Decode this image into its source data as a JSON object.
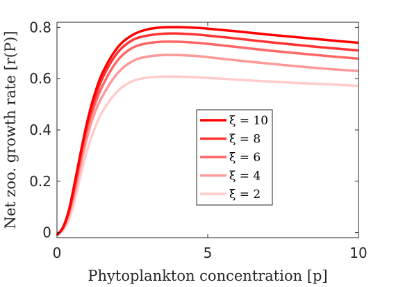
{
  "chart_data": {
    "type": "line",
    "xlabel": "Phytoplankton concentration [p]",
    "ylabel": "Net zoo. growth rate [r(P)]",
    "xlim": [
      0,
      10
    ],
    "ylim": [
      -0.02,
      0.82
    ],
    "xticks": [
      "0",
      "5",
      "10"
    ],
    "yticks": [
      "0",
      "0.2",
      "0.4",
      "0.6",
      "0.8"
    ],
    "grid": false,
    "legend_position": "center",
    "series": [
      {
        "name": "ξ = 10",
        "color": "#ff0000",
        "x": [
          0,
          0.2,
          0.4,
          0.6,
          0.8,
          1.0,
          1.2,
          1.5,
          2.0,
          2.5,
          3.0,
          3.5,
          4.0,
          4.5,
          5.0,
          6.0,
          7.0,
          8.0,
          9.0,
          10.0
        ],
        "y": [
          -0.01,
          0.02,
          0.09,
          0.2,
          0.32,
          0.43,
          0.52,
          0.62,
          0.72,
          0.77,
          0.792,
          0.8,
          0.801,
          0.799,
          0.795,
          0.784,
          0.772,
          0.761,
          0.75,
          0.74
        ]
      },
      {
        "name": "ξ = 8",
        "color": "#ff3333",
        "x": [
          0,
          0.2,
          0.4,
          0.6,
          0.8,
          1.0,
          1.2,
          1.5,
          2.0,
          2.5,
          3.0,
          3.5,
          4.0,
          4.5,
          5.0,
          6.0,
          7.0,
          8.0,
          9.0,
          10.0
        ],
        "y": [
          -0.01,
          0.02,
          0.085,
          0.19,
          0.31,
          0.42,
          0.5,
          0.6,
          0.7,
          0.75,
          0.768,
          0.775,
          0.776,
          0.773,
          0.768,
          0.756,
          0.743,
          0.731,
          0.72,
          0.71
        ]
      },
      {
        "name": "ξ = 6",
        "color": "#ff6666",
        "x": [
          0,
          0.2,
          0.4,
          0.6,
          0.8,
          1.0,
          1.2,
          1.5,
          2.0,
          2.5,
          3.0,
          3.5,
          4.0,
          4.5,
          5.0,
          6.0,
          7.0,
          8.0,
          9.0,
          10.0
        ],
        "y": [
          -0.01,
          0.018,
          0.08,
          0.18,
          0.295,
          0.4,
          0.48,
          0.57,
          0.67,
          0.72,
          0.738,
          0.744,
          0.744,
          0.741,
          0.736,
          0.723,
          0.71,
          0.699,
          0.688,
          0.678
        ]
      },
      {
        "name": "ξ = 4",
        "color": "#ff9999",
        "x": [
          0,
          0.2,
          0.4,
          0.6,
          0.8,
          1.0,
          1.2,
          1.5,
          2.0,
          2.5,
          3.0,
          3.5,
          4.0,
          4.5,
          5.0,
          6.0,
          7.0,
          8.0,
          9.0,
          10.0
        ],
        "y": [
          -0.01,
          0.015,
          0.07,
          0.16,
          0.27,
          0.37,
          0.45,
          0.53,
          0.62,
          0.668,
          0.686,
          0.692,
          0.692,
          0.689,
          0.684,
          0.671,
          0.659,
          0.648,
          0.638,
          0.63
        ]
      },
      {
        "name": "ξ = 2",
        "color": "#ffcccc",
        "x": [
          0,
          0.2,
          0.4,
          0.6,
          0.8,
          1.0,
          1.2,
          1.5,
          2.0,
          2.5,
          3.0,
          3.5,
          4.0,
          4.5,
          5.0,
          6.0,
          7.0,
          8.0,
          9.0,
          10.0
        ],
        "y": [
          -0.01,
          0.01,
          0.05,
          0.13,
          0.23,
          0.32,
          0.39,
          0.47,
          0.55,
          0.59,
          0.604,
          0.608,
          0.608,
          0.606,
          0.603,
          0.596,
          0.589,
          0.583,
          0.578,
          0.572
        ]
      }
    ]
  }
}
